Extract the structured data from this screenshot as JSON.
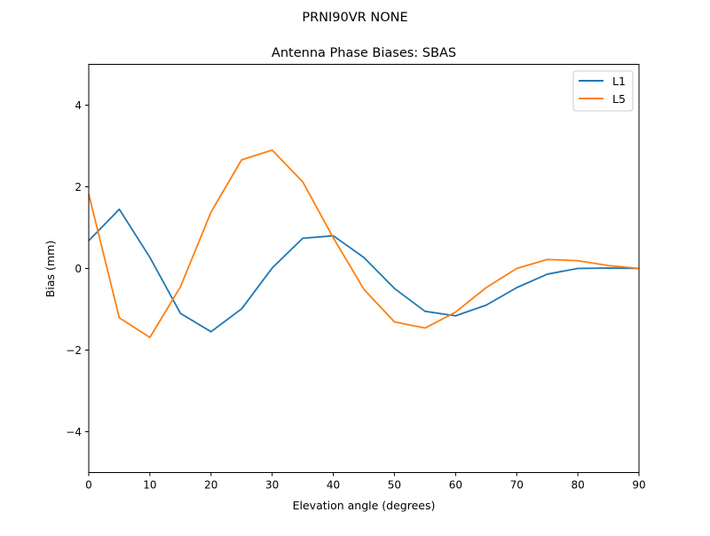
{
  "suptitle": "PRNI90VR        NONE",
  "chart_data": {
    "type": "line",
    "title": "Antenna Phase Biases: SBAS",
    "xlabel": "Elevation angle (degrees)",
    "ylabel": "Bias (mm)",
    "xlim": [
      0,
      90
    ],
    "ylim": [
      -5,
      5
    ],
    "xticks": [
      0,
      10,
      20,
      30,
      40,
      50,
      60,
      70,
      80,
      90
    ],
    "yticks": [
      -4,
      -2,
      0,
      2,
      4
    ],
    "ytick_labels": [
      "−4",
      "−2",
      "0",
      "2",
      "4"
    ],
    "grid": false,
    "legend": "top-right",
    "x": [
      0,
      5,
      10,
      15,
      20,
      25,
      30,
      35,
      40,
      45,
      50,
      55,
      60,
      65,
      70,
      75,
      80,
      85,
      90
    ],
    "series": [
      {
        "name": "L1",
        "color": "#1f77b4",
        "values": [
          0.68,
          1.45,
          0.27,
          -1.1,
          -1.55,
          -0.99,
          0.01,
          0.74,
          0.8,
          0.27,
          -0.49,
          -1.05,
          -1.16,
          -0.9,
          -0.47,
          -0.14,
          0.0,
          0.01,
          0.0
        ]
      },
      {
        "name": "L5",
        "color": "#ff7f0e",
        "values": [
          1.82,
          -1.21,
          -1.69,
          -0.45,
          1.38,
          2.66,
          2.9,
          2.12,
          0.75,
          -0.51,
          -1.31,
          -1.46,
          -1.07,
          -0.47,
          0.0,
          0.22,
          0.19,
          0.07,
          0.0
        ]
      }
    ]
  }
}
